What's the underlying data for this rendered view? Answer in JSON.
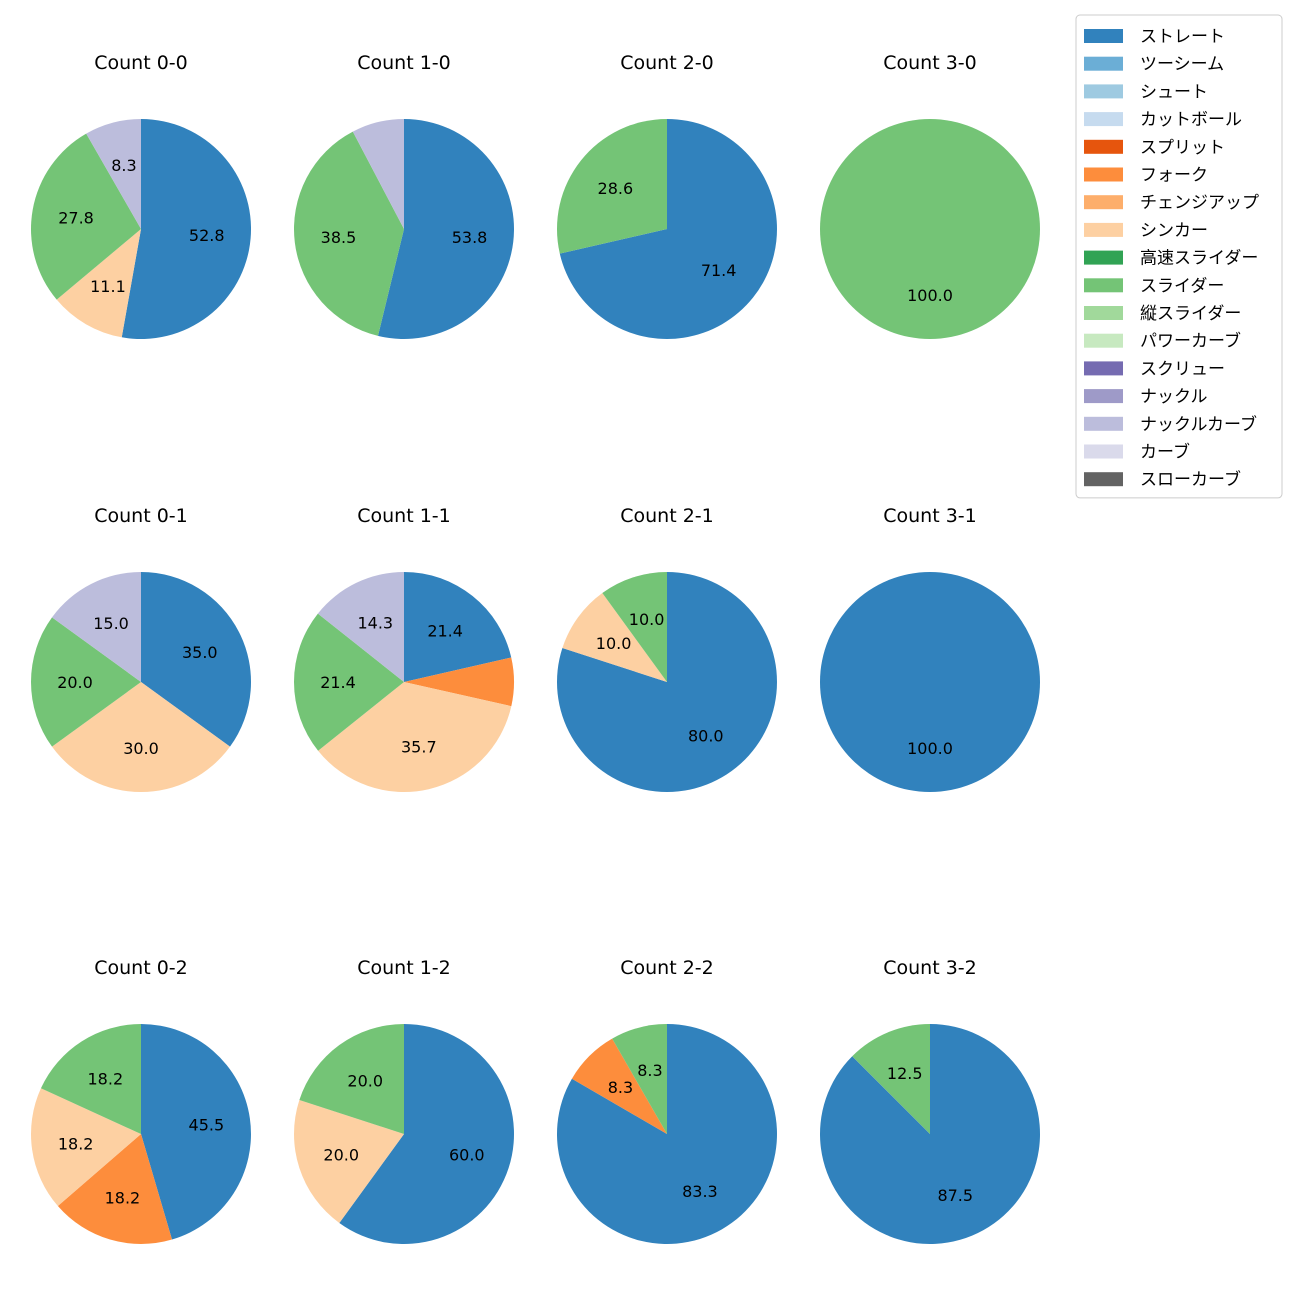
{
  "chart_data": {
    "type": "pie",
    "pitch_types": [
      {
        "name": "ストレート",
        "color": "#3182bd"
      },
      {
        "name": "ツーシーム",
        "color": "#6baed6"
      },
      {
        "name": "シュート",
        "color": "#9ecae1"
      },
      {
        "name": "カットボール",
        "color": "#c6dbef"
      },
      {
        "name": "スプリット",
        "color": "#e6550d"
      },
      {
        "name": "フォーク",
        "color": "#fd8d3c"
      },
      {
        "name": "チェンジアップ",
        "color": "#fdae6b"
      },
      {
        "name": "シンカー",
        "color": "#fdd0a2"
      },
      {
        "name": "高速スライダー",
        "color": "#31a354"
      },
      {
        "name": "スライダー",
        "color": "#74c476"
      },
      {
        "name": "縦スライダー",
        "color": "#a1d99b"
      },
      {
        "name": "パワーカーブ",
        "color": "#c7e9c0"
      },
      {
        "name": "スクリュー",
        "color": "#756bb1"
      },
      {
        "name": "ナックル",
        "color": "#9e9ac8"
      },
      {
        "name": "ナックルカーブ",
        "color": "#bcbddc"
      },
      {
        "name": "カーブ",
        "color": "#dadaeb"
      },
      {
        "name": "スローカーブ",
        "color": "#636363"
      }
    ],
    "pies": [
      {
        "title": "Count 0-0",
        "slices": [
          {
            "type": "ストレート",
            "value": 52.8,
            "label": "52.8"
          },
          {
            "type": "シンカー",
            "value": 11.1,
            "label": "11.1"
          },
          {
            "type": "スライダー",
            "value": 27.8,
            "label": "27.8"
          },
          {
            "type": "ナックルカーブ",
            "value": 8.3,
            "label": "8.3"
          }
        ]
      },
      {
        "title": "Count 1-0",
        "slices": [
          {
            "type": "ストレート",
            "value": 53.8,
            "label": "53.8"
          },
          {
            "type": "スライダー",
            "value": 38.5,
            "label": "38.5"
          },
          {
            "type": "ナックルカーブ",
            "value": 7.7,
            "label": ""
          }
        ]
      },
      {
        "title": "Count 2-0",
        "slices": [
          {
            "type": "ストレート",
            "value": 71.4,
            "label": "71.4"
          },
          {
            "type": "スライダー",
            "value": 28.6,
            "label": "28.6"
          }
        ]
      },
      {
        "title": "Count 3-0",
        "slices": [
          {
            "type": "スライダー",
            "value": 100.0,
            "label": "100.0"
          }
        ]
      },
      {
        "title": "Count 0-1",
        "slices": [
          {
            "type": "ストレート",
            "value": 35.0,
            "label": "35.0"
          },
          {
            "type": "シンカー",
            "value": 30.0,
            "label": "30.0"
          },
          {
            "type": "スライダー",
            "value": 20.0,
            "label": "20.0"
          },
          {
            "type": "ナックルカーブ",
            "value": 15.0,
            "label": "15.0"
          }
        ]
      },
      {
        "title": "Count 1-1",
        "slices": [
          {
            "type": "ストレート",
            "value": 21.4,
            "label": "21.4"
          },
          {
            "type": "フォーク",
            "value": 7.1,
            "label": ""
          },
          {
            "type": "シンカー",
            "value": 35.7,
            "label": "35.7"
          },
          {
            "type": "スライダー",
            "value": 21.4,
            "label": "21.4"
          },
          {
            "type": "ナックルカーブ",
            "value": 14.3,
            "label": "14.3"
          }
        ]
      },
      {
        "title": "Count 2-1",
        "slices": [
          {
            "type": "ストレート",
            "value": 80.0,
            "label": "80.0"
          },
          {
            "type": "シンカー",
            "value": 10.0,
            "label": "10.0"
          },
          {
            "type": "スライダー",
            "value": 10.0,
            "label": "10.0"
          }
        ]
      },
      {
        "title": "Count 3-1",
        "slices": [
          {
            "type": "ストレート",
            "value": 100.0,
            "label": "100.0"
          }
        ]
      },
      {
        "title": "Count 0-2",
        "slices": [
          {
            "type": "ストレート",
            "value": 45.5,
            "label": "45.5"
          },
          {
            "type": "フォーク",
            "value": 18.2,
            "label": "18.2"
          },
          {
            "type": "シンカー",
            "value": 18.2,
            "label": "18.2"
          },
          {
            "type": "スライダー",
            "value": 18.2,
            "label": "18.2"
          }
        ]
      },
      {
        "title": "Count 1-2",
        "slices": [
          {
            "type": "ストレート",
            "value": 60.0,
            "label": "60.0"
          },
          {
            "type": "シンカー",
            "value": 20.0,
            "label": "20.0"
          },
          {
            "type": "スライダー",
            "value": 20.0,
            "label": "20.0"
          }
        ]
      },
      {
        "title": "Count 2-2",
        "slices": [
          {
            "type": "ストレート",
            "value": 83.3,
            "label": "83.3"
          },
          {
            "type": "フォーク",
            "value": 8.3,
            "label": "8.3"
          },
          {
            "type": "スライダー",
            "value": 8.3,
            "label": "8.3"
          }
        ]
      },
      {
        "title": "Count 3-2",
        "slices": [
          {
            "type": "ストレート",
            "value": 87.5,
            "label": "87.5"
          },
          {
            "type": "スライダー",
            "value": 12.5,
            "label": "12.5"
          }
        ]
      }
    ],
    "legend_position": "top-right"
  }
}
